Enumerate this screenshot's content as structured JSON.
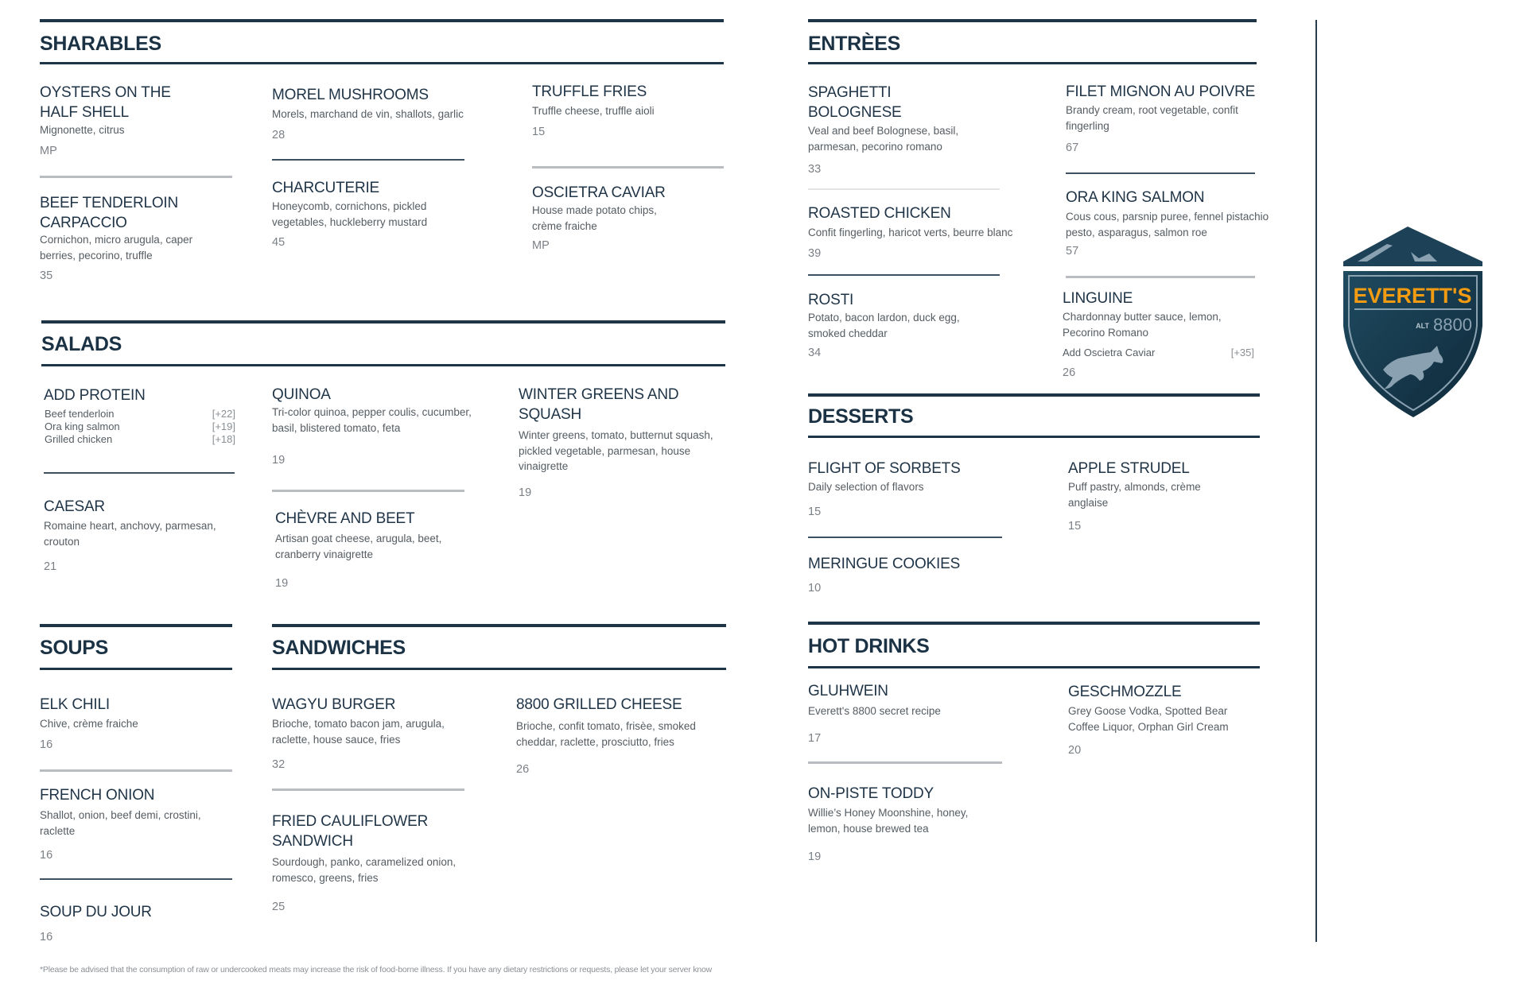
{
  "brand": {
    "name": "EVERETT'S",
    "alt_label": "ALT",
    "altitude": "8800",
    "accent_color": "#f39c12",
    "primary_color": "#1b3245"
  },
  "sharables": {
    "title": "SHARABLES",
    "items": [
      {
        "name": "OYSTERS ON THE\nHALF SHELL",
        "desc": "Mignonette, citrus",
        "price": "MP"
      },
      {
        "name": "BEEF TENDERLOIN\nCARPACCIO",
        "desc": "Cornichon, micro arugula, caper\nberries, pecorino, truffle",
        "price": "35"
      },
      {
        "name": "MOREL MUSHROOMS",
        "desc": "Morels, marchand de vin, shallots, garlic",
        "price": "28"
      },
      {
        "name": "CHARCUTERIE",
        "desc": "Honeycomb, cornichons, pickled\nvegetables, huckleberry mustard",
        "price": "45"
      },
      {
        "name": "TRUFFLE FRIES",
        "desc": "Truffle cheese, truffle aioli",
        "price": "15"
      },
      {
        "name": "OSCIETRA CAVIAR",
        "desc": "House made potato chips,\ncrème fraiche",
        "price": "MP"
      }
    ]
  },
  "salads": {
    "title": "SALADS",
    "add_protein": {
      "name": "ADD PROTEIN",
      "options": [
        {
          "label": "Beef tenderloin",
          "price": "[+22]"
        },
        {
          "label": "Ora king salmon",
          "price": "[+19]"
        },
        {
          "label": "Grilled chicken",
          "price": "[+18]"
        }
      ]
    },
    "items": [
      {
        "name": "CAESAR",
        "desc": "Romaine heart, anchovy, parmesan,\ncrouton",
        "price": "21"
      },
      {
        "name": "QUINOA",
        "desc": "Tri-color quinoa, pepper coulis, cucumber,\nbasil, blistered tomato, feta",
        "price": "19"
      },
      {
        "name": "CHÈVRE AND BEET",
        "desc": "Artisan goat cheese, arugula, beet,\ncranberry vinaigrette",
        "price": "19"
      },
      {
        "name": "WINTER GREENS AND\nSQUASH",
        "desc": "Winter greens, tomato, butternut squash,\npickled vegetable, parmesan, house\nvinaigrette",
        "price": "19"
      }
    ]
  },
  "soups": {
    "title": "SOUPS",
    "items": [
      {
        "name": "ELK CHILI",
        "desc": "Chive, crème fraiche",
        "price": "16"
      },
      {
        "name": "FRENCH ONION",
        "desc": "Shallot, onion, beef demi, crostini,\nraclette",
        "price": "16"
      },
      {
        "name": "SOUP DU JOUR",
        "price": "16"
      }
    ]
  },
  "sandwiches": {
    "title": "SANDWICHES",
    "items": [
      {
        "name": "WAGYU BURGER",
        "desc": "Brioche, tomato bacon jam, arugula,\nraclette, house sauce, fries",
        "price": "32"
      },
      {
        "name": "FRIED CAULIFLOWER\nSANDWICH",
        "desc": "Sourdough, panko, caramelized onion,\nromesco, greens, fries",
        "price": "25"
      },
      {
        "name": "8800 GRILLED CHEESE",
        "desc": "Brioche, confit tomato, frisèe, smoked\ncheddar, raclette, prosciutto, fries",
        "price": "26"
      }
    ]
  },
  "entrees": {
    "title": "ENTRÈES",
    "items": [
      {
        "name": "SPAGHETTI\nBOLOGNESE",
        "desc": "Veal and beef Bolognese, basil,\nparmesan, pecorino romano",
        "price": "33"
      },
      {
        "name": "ROASTED CHICKEN",
        "desc": "Confit fingerling, haricot verts, beurre blanc",
        "price": "39"
      },
      {
        "name": "ROSTI",
        "desc": "Potato, bacon lardon, duck egg,\nsmoked cheddar",
        "price": "34"
      },
      {
        "name": "FILET MIGNON AU POIVRE",
        "desc": "Brandy cream, root vegetable, confit\nfingerling",
        "price": "67"
      },
      {
        "name": "ORA KING SALMON",
        "desc": "Cous cous, parsnip puree, fennel pistachio\npesto, asparagus, salmon roe",
        "price": "57"
      },
      {
        "name": "LINGUINE",
        "desc": "Chardonnay butter sauce, lemon,\nPecorino Romano",
        "price": "26",
        "addon": {
          "label": "Add Oscietra Caviar",
          "price": "[+35]"
        }
      }
    ]
  },
  "desserts": {
    "title": "DESSERTS",
    "items": [
      {
        "name": "FLIGHT OF SORBETS",
        "desc": "Daily selection of flavors",
        "price": "15"
      },
      {
        "name": "MERINGUE COOKIES",
        "price": "10"
      },
      {
        "name": "APPLE STRUDEL",
        "desc": "Puff pastry, almonds, crème\nanglaise",
        "price": "15"
      }
    ]
  },
  "hot_drinks": {
    "title": "HOT DRINKS",
    "items": [
      {
        "name": "GLUHWEIN",
        "desc": "Everett's 8800 secret recipe",
        "price": "17"
      },
      {
        "name": "ON-PISTE TODDY",
        "desc": "Willie’s Honey Moonshine, honey,\nlemon, house brewed tea",
        "price": "19"
      },
      {
        "name": "GESCHMOZZLE",
        "desc": "Grey Goose Vodka, Spotted Bear\nCoffee Liquor, Orphan Girl Cream",
        "price": "20"
      }
    ]
  },
  "footer": {
    "disclaimer": "*Please be advised that the consumption of raw or undercooked meats may increase the risk of food-borne illness. If you have any dietary restrictions or requests, please let your server know"
  }
}
